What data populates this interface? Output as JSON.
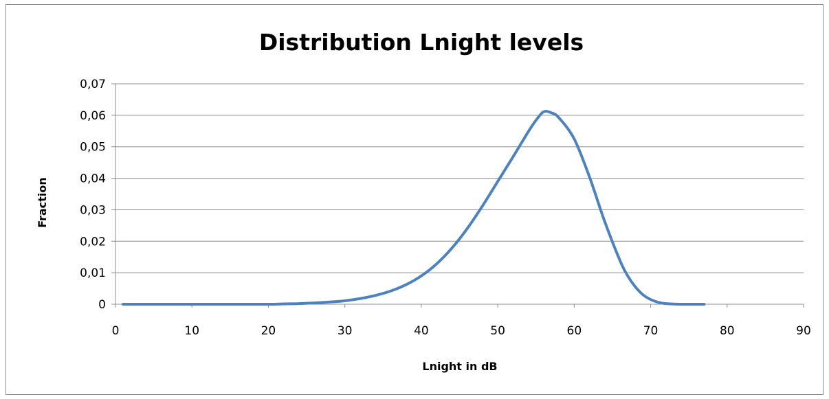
{
  "chart_data": {
    "type": "line",
    "title": "Distribution Lnight levels",
    "xlabel": "Lnight in dB",
    "ylabel": "Fraction",
    "xlim": [
      0,
      90
    ],
    "ylim": [
      0,
      0.07
    ],
    "x_ticks": [
      "0",
      "10",
      "20",
      "30",
      "40",
      "50",
      "60",
      "70",
      "80",
      "90"
    ],
    "y_ticks": [
      "0",
      "0,01",
      "0,02",
      "0,03",
      "0,04",
      "0,05",
      "0,06",
      "0,07"
    ],
    "grid": "horizontal",
    "legend": "none",
    "series": [
      {
        "color": "#4F81BD",
        "x": [
          1,
          5,
          10,
          15,
          20,
          22,
          24,
          26,
          28,
          30,
          32,
          34,
          36,
          38,
          40,
          42,
          44,
          46,
          48,
          50,
          52,
          54,
          55,
          56,
          57,
          58,
          60,
          62,
          64,
          66,
          67,
          68,
          69,
          70,
          71,
          72,
          74,
          76,
          77
        ],
        "y": [
          0,
          0,
          0,
          0,
          0,
          0.0001,
          0.0002,
          0.0004,
          0.0007,
          0.0011,
          0.0018,
          0.0028,
          0.0042,
          0.0062,
          0.009,
          0.0128,
          0.0178,
          0.024,
          0.0312,
          0.039,
          0.0468,
          0.0548,
          0.0584,
          0.0611,
          0.0608,
          0.0592,
          0.0525,
          0.0404,
          0.0262,
          0.0138,
          0.009,
          0.0055,
          0.003,
          0.0015,
          0.0006,
          0.0002,
          0,
          0,
          0
        ]
      }
    ]
  }
}
